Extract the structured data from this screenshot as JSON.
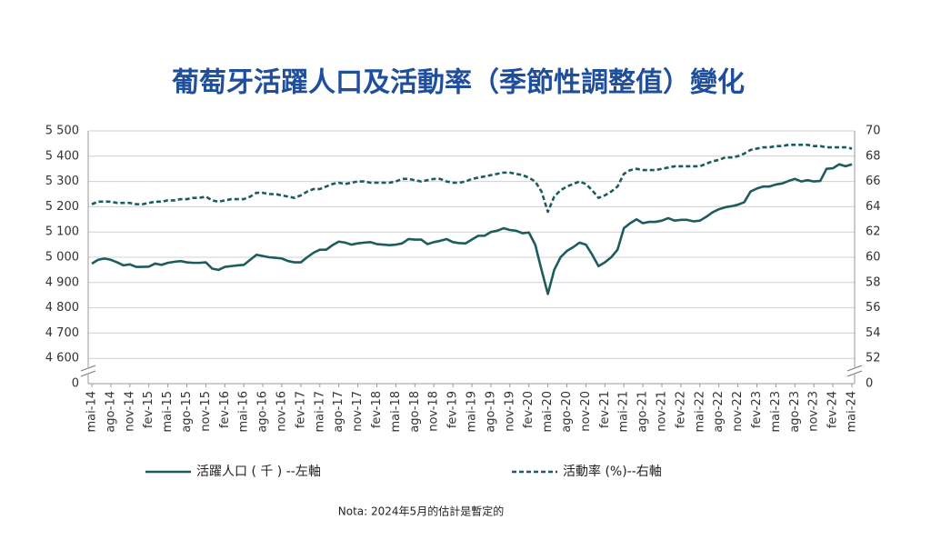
{
  "chart_data": {
    "type": "line",
    "title": "葡萄牙活躍人口及活動率（季節性調整值）變化",
    "note": "Nota: 2024年5月的估計是暫定的",
    "categories": [
      "mai-14",
      null,
      null,
      "ago-14",
      null,
      null,
      "nov-14",
      null,
      null,
      "fev-15",
      null,
      null,
      "mai-15",
      null,
      null,
      "ago-15",
      null,
      null,
      "nov-15",
      null,
      null,
      "fev-16",
      null,
      null,
      "mai-16",
      null,
      null,
      "ago-16",
      null,
      null,
      "nov-16",
      null,
      null,
      "fev-17",
      null,
      null,
      "mai-17",
      null,
      null,
      "ago-17",
      null,
      null,
      "nov-17",
      null,
      null,
      "fev-18",
      null,
      null,
      "mai-18",
      null,
      null,
      "ago-18",
      null,
      null,
      "nov-18",
      null,
      null,
      "fev-19",
      null,
      null,
      "mai-19",
      null,
      null,
      "ago-19",
      null,
      null,
      "nov-19",
      null,
      null,
      "fev-20",
      null,
      null,
      "mai-20",
      null,
      null,
      "ago-20",
      null,
      null,
      "nov-20",
      null,
      null,
      "fev-21",
      null,
      null,
      "mai-21",
      null,
      null,
      "ago-21",
      null,
      null,
      "nov-21",
      null,
      null,
      "fev-22",
      null,
      null,
      "mai-22",
      null,
      null,
      "ago-22",
      null,
      null,
      "nov-22",
      null,
      null,
      "fev-23",
      null,
      null,
      "mai-23",
      null,
      null,
      "ago-23",
      null,
      null,
      "nov-23",
      null,
      null,
      "fev-24",
      null,
      null,
      "mai-24"
    ],
    "series": [
      {
        "name": "活躍人口 ( 千 ) --左軸",
        "color": "#1d5c5e",
        "line_style": "solid",
        "axis": "y",
        "values": [
          4975,
          4990,
          4995,
          4990,
          4980,
          4968,
          4972,
          4962,
          4962,
          4963,
          4975,
          4970,
          4978,
          4982,
          4985,
          4980,
          4978,
          4978,
          4980,
          4955,
          4950,
          4962,
          4965,
          4968,
          4970,
          4990,
          5010,
          5005,
          5000,
          4998,
          4995,
          4985,
          4980,
          4980,
          5000,
          5018,
          5030,
          5030,
          5048,
          5062,
          5058,
          5050,
          5055,
          5058,
          5060,
          5052,
          5050,
          5048,
          5050,
          5055,
          5072,
          5070,
          5070,
          5052,
          5060,
          5065,
          5072,
          5060,
          5056,
          5055,
          5070,
          5085,
          5085,
          5100,
          5105,
          5115,
          5108,
          5105,
          5095,
          5098,
          5050,
          4950,
          4855,
          4950,
          5000,
          5025,
          5040,
          5058,
          5050,
          5010,
          4965,
          4980,
          5000,
          5030,
          5115,
          5135,
          5150,
          5135,
          5140,
          5140,
          5145,
          5155,
          5145,
          5148,
          5148,
          5142,
          5145,
          5160,
          5178,
          5190,
          5198,
          5202,
          5208,
          5218,
          5260,
          5272,
          5280,
          5280,
          5288,
          5292,
          5302,
          5310,
          5300,
          5305,
          5300,
          5302,
          5350,
          5352,
          5368,
          5360,
          5368
        ]
      },
      {
        "name": "活動率 (%)--右軸",
        "color": "#1d5c5e",
        "line_style": "dashed",
        "axis": "y2",
        "values": [
          64.2,
          64.4,
          64.4,
          64.4,
          64.3,
          64.3,
          64.3,
          64.2,
          64.2,
          64.3,
          64.4,
          64.4,
          64.5,
          64.5,
          64.6,
          64.6,
          64.7,
          64.7,
          64.8,
          64.5,
          64.4,
          64.5,
          64.6,
          64.6,
          64.6,
          64.8,
          65.1,
          65.1,
          65.0,
          65.0,
          64.9,
          64.8,
          64.7,
          64.9,
          65.2,
          65.4,
          65.4,
          65.6,
          65.8,
          65.9,
          65.8,
          65.9,
          66.0,
          66.0,
          65.9,
          65.9,
          65.9,
          65.9,
          66.0,
          66.2,
          66.2,
          66.1,
          66.0,
          66.1,
          66.2,
          66.2,
          66.0,
          65.9,
          65.9,
          66.0,
          66.2,
          66.3,
          66.4,
          66.5,
          66.6,
          66.7,
          66.7,
          66.6,
          66.5,
          66.3,
          66.0,
          65.2,
          63.6,
          64.8,
          65.3,
          65.6,
          65.8,
          66.0,
          65.8,
          65.3,
          64.7,
          64.9,
          65.2,
          65.6,
          66.6,
          66.9,
          67.0,
          66.9,
          66.9,
          66.9,
          67.0,
          67.1,
          67.2,
          67.2,
          67.2,
          67.2,
          67.2,
          67.4,
          67.6,
          67.7,
          67.9,
          67.9,
          68.0,
          68.2,
          68.5,
          68.6,
          68.7,
          68.7,
          68.8,
          68.8,
          68.9,
          68.9,
          68.9,
          68.9,
          68.8,
          68.8,
          68.7,
          68.7,
          68.7,
          68.7,
          68.6
        ]
      }
    ],
    "ylim": [
      4500,
      5500
    ],
    "yticks": [
      {
        "value": 4600,
        "label": "4 600"
      },
      {
        "value": 4700,
        "label": "4 700"
      },
      {
        "value": 4800,
        "label": "4 800"
      },
      {
        "value": 4900,
        "label": "4 900"
      },
      {
        "value": 5000,
        "label": "5 000"
      },
      {
        "value": 5100,
        "label": "5 100"
      },
      {
        "value": 5200,
        "label": "5 200"
      },
      {
        "value": 5300,
        "label": "5 300"
      },
      {
        "value": 5400,
        "label": "5 400"
      },
      {
        "value": 5500,
        "label": "5 500"
      }
    ],
    "y_origin_label": "0",
    "y2lim": [
      50,
      70
    ],
    "y2ticks": [
      52,
      54,
      56,
      58,
      60,
      62,
      64,
      66,
      68,
      70
    ],
    "y2_origin_label": "0",
    "grid": true,
    "legend": "bottom"
  }
}
